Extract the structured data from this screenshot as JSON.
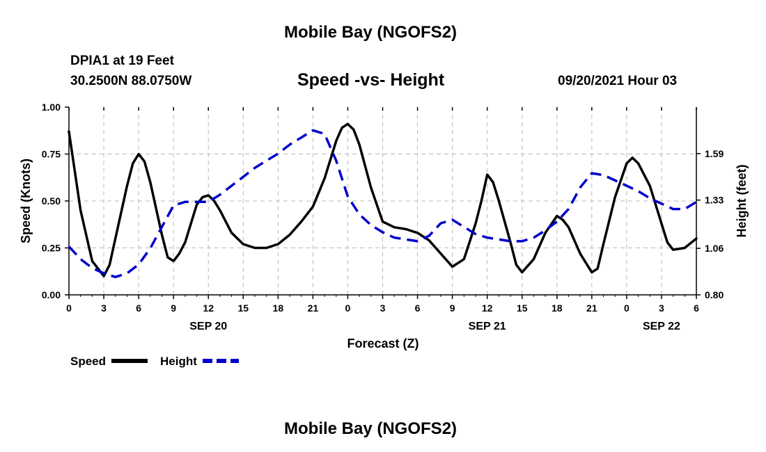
{
  "page": {
    "top_title": "Mobile Bay (NGOFS2)",
    "station_line": "DPIA1 at 19 Feet",
    "coords_line": "30.2500N  88.0750W",
    "chart_title": "Speed -vs- Height",
    "datetime": "09/20/2021 Hour 03",
    "bottom_title": "Mobile Bay (NGOFS2)"
  },
  "chart_data": {
    "type": "line",
    "xlabel": "Forecast (Z)",
    "ylabel": "Speed (Knots)",
    "y2label": "Height (feet)",
    "x_range": [
      0,
      54
    ],
    "ylim": [
      0,
      1.0
    ],
    "y2lim": [
      0.8,
      1.85
    ],
    "x_ticks": [
      0,
      3,
      6,
      9,
      12,
      15,
      18,
      21,
      24,
      27,
      30,
      33,
      36,
      39,
      42,
      45,
      48,
      51,
      54
    ],
    "x_tick_labels": [
      "0",
      "3",
      "6",
      "9",
      "12",
      "15",
      "18",
      "21",
      "0",
      "3",
      "6",
      "9",
      "12",
      "15",
      "18",
      "21",
      "0",
      "3",
      "6"
    ],
    "date_labels": [
      {
        "x": 12,
        "label": "SEP 20"
      },
      {
        "x": 36,
        "label": "SEP 21"
      },
      {
        "x": 51,
        "label": "SEP 22"
      }
    ],
    "y_ticks": [
      0.0,
      0.25,
      0.5,
      0.75,
      1.0
    ],
    "y_tick_labels": [
      "0.00",
      "0.25",
      "0.50",
      "0.75",
      "1.00"
    ],
    "y2_ticks": [
      0.8,
      1.06,
      1.33,
      1.59
    ],
    "y2_tick_labels": [
      "0.80",
      "1.06",
      "1.33",
      "1.59"
    ],
    "grid": true,
    "legend": {
      "placement": "bottom-left",
      "entries": [
        "Speed",
        "Height"
      ]
    },
    "series": [
      {
        "name": "Speed",
        "color": "#000000",
        "dash": "solid",
        "axis": "left",
        "x": [
          0,
          1,
          2,
          3,
          3.5,
          4,
          5,
          5.5,
          6,
          6.5,
          7,
          8,
          8.5,
          9,
          9.5,
          10,
          11,
          11.5,
          12,
          12.5,
          13,
          14,
          15,
          16,
          17,
          18,
          19,
          20,
          21,
          22,
          23,
          23.5,
          24,
          24.5,
          25,
          26,
          27,
          28,
          29,
          30,
          31,
          32,
          33,
          34,
          35,
          35.5,
          36,
          36.5,
          37,
          38,
          38.5,
          39,
          40,
          41,
          42,
          42.5,
          43,
          44,
          45,
          45.5,
          46,
          47,
          48,
          48.5,
          49,
          50,
          51,
          51.5,
          52,
          53,
          54
        ],
        "y": [
          0.87,
          0.45,
          0.18,
          0.1,
          0.16,
          0.3,
          0.58,
          0.7,
          0.75,
          0.71,
          0.6,
          0.32,
          0.2,
          0.18,
          0.22,
          0.28,
          0.48,
          0.52,
          0.53,
          0.5,
          0.45,
          0.33,
          0.27,
          0.25,
          0.25,
          0.27,
          0.32,
          0.39,
          0.47,
          0.62,
          0.82,
          0.89,
          0.91,
          0.88,
          0.8,
          0.57,
          0.39,
          0.36,
          0.35,
          0.33,
          0.29,
          0.22,
          0.15,
          0.19,
          0.38,
          0.5,
          0.64,
          0.6,
          0.5,
          0.28,
          0.16,
          0.12,
          0.19,
          0.33,
          0.42,
          0.4,
          0.36,
          0.22,
          0.12,
          0.14,
          0.27,
          0.52,
          0.7,
          0.73,
          0.7,
          0.58,
          0.38,
          0.28,
          0.24,
          0.25,
          0.3
        ]
      },
      {
        "name": "Height",
        "color": "#0000cc",
        "dash": "dashed",
        "axis": "right",
        "x": [
          0,
          1,
          2,
          3,
          4,
          5,
          6,
          7,
          8,
          9,
          10,
          11,
          12,
          13,
          14,
          15,
          16,
          17,
          18,
          19,
          20,
          21,
          22,
          23,
          24,
          25,
          26,
          27,
          28,
          29,
          30,
          31,
          32,
          33,
          34,
          35,
          36,
          37,
          38,
          39,
          40,
          41,
          42,
          43,
          44,
          45,
          46,
          47,
          48,
          49,
          50,
          51,
          52,
          53,
          54
        ],
        "y": [
          1.07,
          1.0,
          0.95,
          0.92,
          0.9,
          0.92,
          0.97,
          1.06,
          1.18,
          1.3,
          1.32,
          1.32,
          1.32,
          1.36,
          1.41,
          1.46,
          1.51,
          1.55,
          1.59,
          1.64,
          1.68,
          1.72,
          1.7,
          1.55,
          1.35,
          1.25,
          1.19,
          1.15,
          1.12,
          1.11,
          1.1,
          1.13,
          1.2,
          1.22,
          1.18,
          1.14,
          1.12,
          1.11,
          1.1,
          1.1,
          1.12,
          1.16,
          1.21,
          1.28,
          1.4,
          1.48,
          1.47,
          1.44,
          1.41,
          1.38,
          1.34,
          1.31,
          1.28,
          1.28,
          1.32
        ]
      }
    ]
  }
}
